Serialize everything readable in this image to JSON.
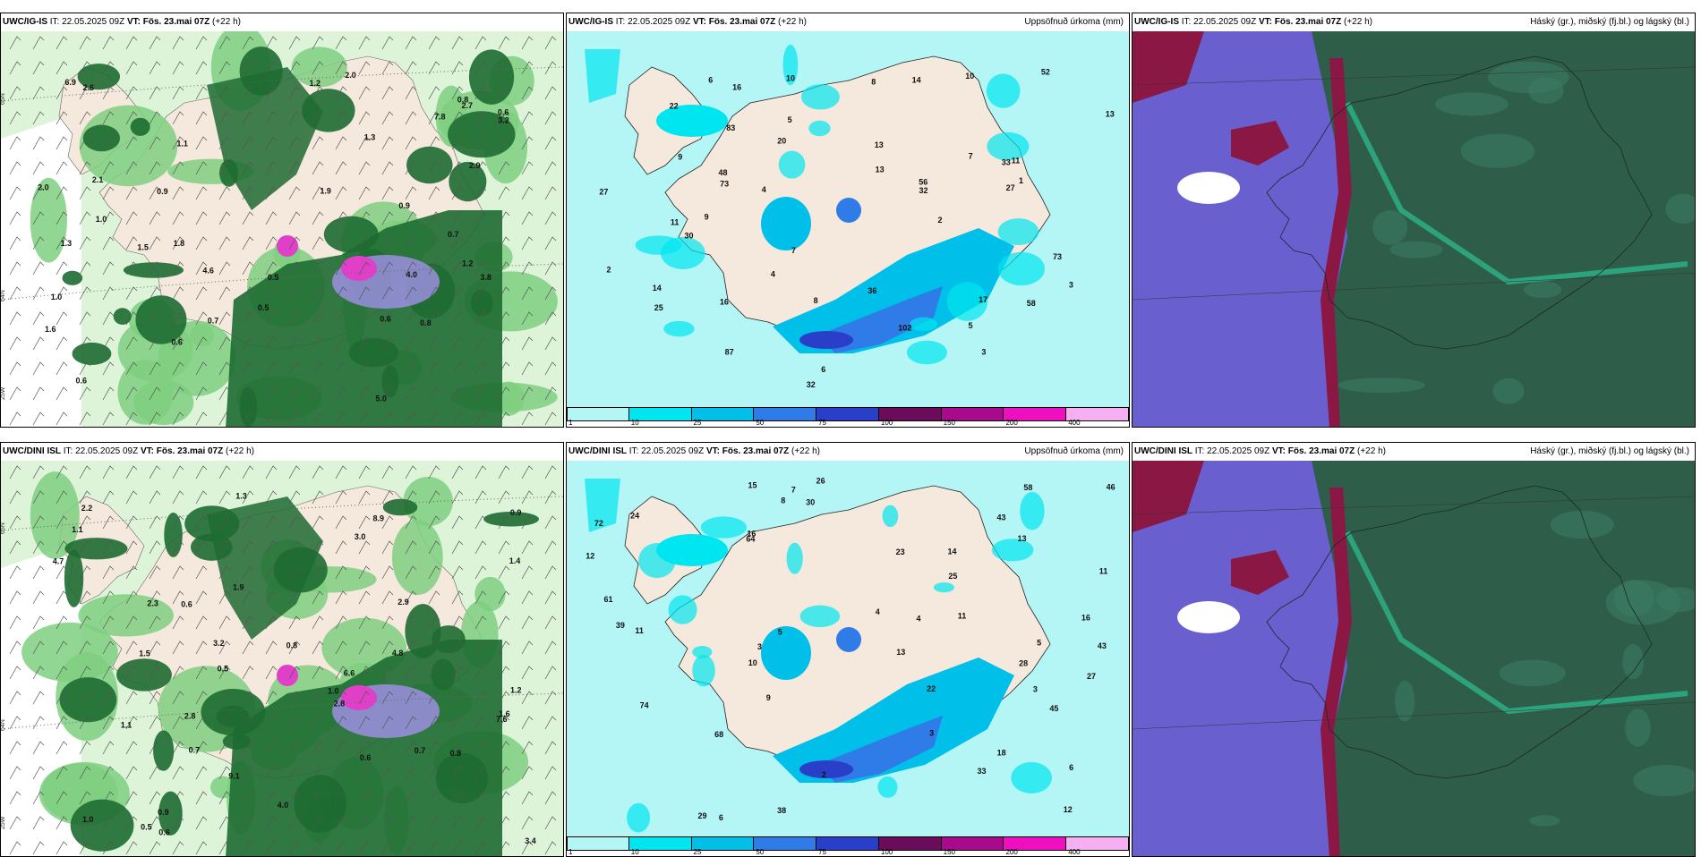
{
  "rows": [
    {
      "model": "UWC/IG-IS",
      "it_label": "IT:",
      "it_value": "22.05.2025 09Z",
      "vt_label": "VT:",
      "vt_value": "Fös. 23.mai 07Z",
      "lead": "(+22 h)",
      "precip_values": [
        "0.8",
        "0.9",
        "0.5",
        "1.0",
        "2.6",
        "4.0",
        "0.6",
        "1.2",
        "0.9",
        "0.7",
        "0.5",
        "1.1",
        "6.9",
        "2.1",
        "1.5",
        "3.2",
        "2.9",
        "4.6",
        "7.8",
        "0.6",
        "1.6",
        "2.0",
        "1.3",
        "1.9",
        "0.8",
        "1.0",
        "0.7",
        "0.6",
        "2.0",
        "1.3",
        "1.2",
        "3.8",
        "2.7",
        "5.0",
        "1.8",
        "0.6"
      ],
      "accum_values": [
        "9",
        "10",
        "14",
        "5",
        "2",
        "17",
        "1",
        "16",
        "25",
        "27",
        "13",
        "14",
        "13",
        "11",
        "8",
        "10",
        "7",
        "6",
        "4",
        "56",
        "27",
        "11",
        "52",
        "73",
        "36",
        "32",
        "48",
        "33",
        "32",
        "4",
        "16",
        "58",
        "73",
        "83",
        "20",
        "30",
        "22",
        "13",
        "102",
        "87",
        "7",
        "8",
        "3",
        "9",
        "2",
        "6",
        "5",
        "3"
      ],
      "colorbar_title": "Uppsöfnuð úrkoma (mm)",
      "cloud_title": "Háský (gr.), miðský (fj.bl.) og lágský (bl.)"
    },
    {
      "model": "UWC/DINI ISL",
      "it_label": "IT:",
      "it_value": "22.05.2025 09Z",
      "vt_label": "VT:",
      "vt_value": "Fös. 23.mai 07Z",
      "lead": "(+22 h)",
      "precip_values": [
        "1.4",
        "0.9",
        "0.8",
        "0.7",
        "1.2",
        "0.6",
        "1.0",
        "2.3",
        "1.1",
        "3.0",
        "0.5",
        "0.8",
        "2.8",
        "4.8",
        "7.6",
        "9.1",
        "6.6",
        "8.9",
        "0.6",
        "1.3",
        "2.2",
        "1.5",
        "1.9",
        "4.0",
        "2.8",
        "1.6",
        "0.5",
        "0.7",
        "3.2",
        "1.0",
        "4.7",
        "3.4",
        "0.9",
        "2.9",
        "1.1",
        "0.6"
      ],
      "accum_values": [
        "13",
        "11",
        "16",
        "9",
        "14",
        "12",
        "10",
        "7",
        "16",
        "28",
        "30",
        "33",
        "29",
        "74",
        "22",
        "13",
        "43",
        "46",
        "43",
        "18",
        "11",
        "12",
        "26",
        "64",
        "68",
        "24",
        "27",
        "61",
        "39",
        "38",
        "11",
        "25",
        "45",
        "23",
        "15",
        "58",
        "72",
        "6",
        "4",
        "3",
        "5",
        "8",
        "3",
        "2",
        "4",
        "6",
        "5",
        "3"
      ],
      "colorbar_title": "Uppsöfnuð úrkoma (mm)",
      "cloud_title": "Háský (gr.), miðský (fj.bl.) og lágský (bl.)"
    }
  ],
  "colorbar": {
    "ticks": [
      "1",
      "10",
      "25",
      "50",
      "75",
      "100",
      "150",
      "200",
      "400"
    ],
    "colors": [
      "#b4f5f5",
      "#00e6f0",
      "#00bfe8",
      "#2f7be8",
      "#2a3fc8",
      "#6a0c5a",
      "#a80a8c",
      "#ee10c0",
      "#f5b0f2"
    ]
  },
  "lat_labels": [
    "65N",
    "64N",
    "25W"
  ],
  "colors": {
    "land": "#f5e8dc",
    "green_light": "#c8ecc0",
    "green_mid": "#7fcf80",
    "green_dark": "#1e6b32",
    "cyan_light": "#b4f5f5",
    "cloud_ocean": "#6a5fcf",
    "cloud_dark": "#2e5e4a",
    "cloud_red": "#8a1744"
  }
}
